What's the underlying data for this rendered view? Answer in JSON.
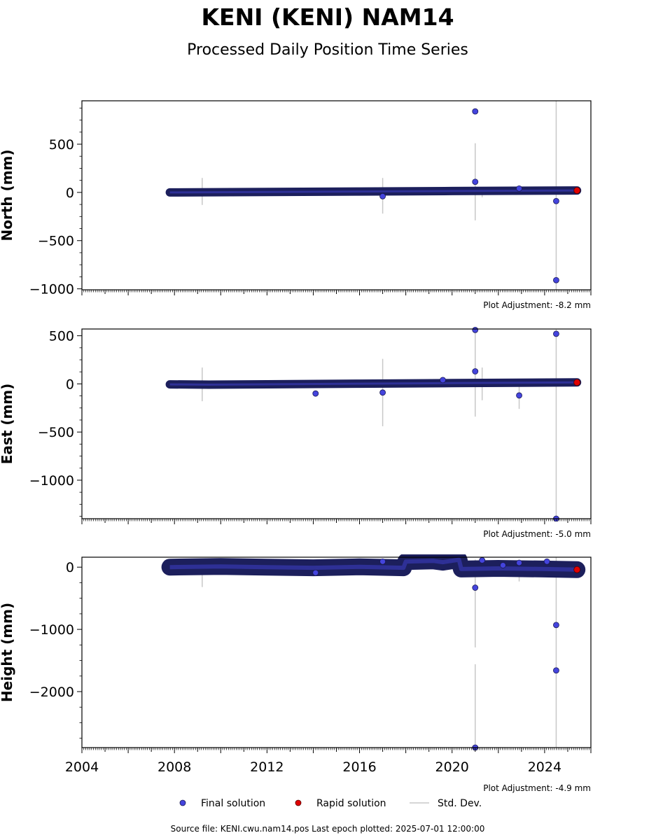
{
  "header": {
    "title": "KENI (KENI) NAM14",
    "subtitle": "Processed Daily Position Time Series"
  },
  "footer": {
    "source": "Source file: KENI.cwu.nam14.pos  Last epoch plotted: 2025-07-01 12:00:00"
  },
  "colors": {
    "final": "#4444dd",
    "final_edge": "#1a1a55",
    "dense": "#1c1f5c",
    "rapid": "#e00000",
    "stddev": "#c8c8c8"
  },
  "legend": {
    "placement": "bottom-center",
    "items": [
      {
        "label": "Final solution",
        "marker": "blue-dot"
      },
      {
        "label": "Rapid solution",
        "marker": "red-dot"
      },
      {
        "label": "Std. Dev.",
        "marker": "gray-line"
      }
    ]
  },
  "chart_data": [
    {
      "type": "scatter",
      "ylabel": "North (mm)",
      "adjustment": "Plot Adjustment: -8.2 mm",
      "xlim": [
        2004,
        2026
      ],
      "ylim": [
        -1010,
        950
      ],
      "yticks": [
        500,
        0,
        -500,
        -1000
      ],
      "ytick_labels": [
        "500",
        "0",
        "−500",
        "−1000"
      ],
      "trend": [
        [
          2007.8,
          0
        ],
        [
          2012.0,
          5
        ],
        [
          2016.0,
          9
        ],
        [
          2020.0,
          14
        ],
        [
          2025.4,
          20
        ]
      ],
      "band_width": 12,
      "errorbars": [
        [
          2009.2,
          -130,
          150
        ],
        [
          2017.0,
          -220,
          150
        ],
        [
          2021.0,
          -290,
          500
        ],
        [
          2021.0,
          250,
          510
        ],
        [
          2024.5,
          -1010,
          950
        ],
        [
          2021.3,
          -50,
          30
        ]
      ],
      "outliers": [
        [
          2017.0,
          -40
        ],
        [
          2021.0,
          840
        ],
        [
          2021.0,
          110
        ],
        [
          2024.5,
          -90
        ],
        [
          2024.5,
          -910
        ],
        [
          2022.9,
          40
        ]
      ],
      "rapid": [
        [
          2025.4,
          20
        ]
      ]
    },
    {
      "type": "scatter",
      "ylabel": "East (mm)",
      "adjustment": "Plot Adjustment: -5.0 mm",
      "xlim": [
        2004,
        2026
      ],
      "ylim": [
        -1400,
        570
      ],
      "yticks": [
        500,
        0,
        -500,
        -1000
      ],
      "ytick_labels": [
        "500",
        "0",
        "−500",
        "−1000"
      ],
      "trend": [
        [
          2007.8,
          -5
        ],
        [
          2009.5,
          -8
        ],
        [
          2012.0,
          -4
        ],
        [
          2016.0,
          2
        ],
        [
          2020.0,
          8
        ],
        [
          2025.4,
          15
        ]
      ],
      "band_width": 12,
      "errorbars": [
        [
          2009.2,
          -180,
          170
        ],
        [
          2017.0,
          -440,
          260
        ],
        [
          2021.0,
          -340,
          570
        ],
        [
          2021.3,
          -170,
          170
        ],
        [
          2022.9,
          -260,
          20
        ],
        [
          2024.5,
          -1400,
          570
        ]
      ],
      "outliers": [
        [
          2014.1,
          -100
        ],
        [
          2017.0,
          -90
        ],
        [
          2019.6,
          40
        ],
        [
          2021.0,
          560
        ],
        [
          2021.0,
          130
        ],
        [
          2022.9,
          -120
        ],
        [
          2024.5,
          520
        ],
        [
          2024.5,
          -1400
        ]
      ],
      "rapid": [
        [
          2025.4,
          15
        ]
      ]
    },
    {
      "type": "scatter",
      "ylabel": "Height (mm)",
      "adjustment": "Plot Adjustment: -4.9 mm",
      "xlim": [
        2004,
        2026
      ],
      "ylim": [
        -2900,
        160
      ],
      "yticks": [
        0,
        -1000,
        -2000
      ],
      "ytick_labels": [
        "0",
        "−1000",
        "−2000"
      ],
      "xticks": [
        2004,
        2008,
        2012,
        2016,
        2020,
        2024
      ],
      "xtick_labels": [
        "2004",
        "2008",
        "2012",
        "2016",
        "2020",
        "2024"
      ],
      "trend": [
        [
          2007.8,
          0
        ],
        [
          2010.0,
          10
        ],
        [
          2012.0,
          0
        ],
        [
          2014.0,
          -10
        ],
        [
          2016.0,
          5
        ],
        [
          2017.9,
          -10
        ],
        [
          2018.0,
          90
        ],
        [
          2019.2,
          100
        ],
        [
          2019.6,
          80
        ],
        [
          2020.3,
          120
        ],
        [
          2020.4,
          -30
        ],
        [
          2022.0,
          -20
        ],
        [
          2024.0,
          -30
        ],
        [
          2025.4,
          -40
        ]
      ],
      "band_width": 24,
      "errorbars": [
        [
          2009.2,
          -320,
          40
        ],
        [
          2021.0,
          -1290,
          120
        ],
        [
          2021.0,
          -2900,
          -1560
        ],
        [
          2022.9,
          -230,
          60
        ],
        [
          2024.5,
          -2900,
          160
        ]
      ],
      "outliers": [
        [
          2014.1,
          -90
        ],
        [
          2017.0,
          90
        ],
        [
          2021.0,
          -330
        ],
        [
          2021.3,
          110
        ],
        [
          2022.2,
          30
        ],
        [
          2022.9,
          70
        ],
        [
          2024.1,
          90
        ],
        [
          2024.5,
          -930
        ],
        [
          2024.5,
          -1660
        ],
        [
          2021.0,
          -2900
        ]
      ],
      "rapid": [
        [
          2025.4,
          -40
        ]
      ]
    }
  ]
}
